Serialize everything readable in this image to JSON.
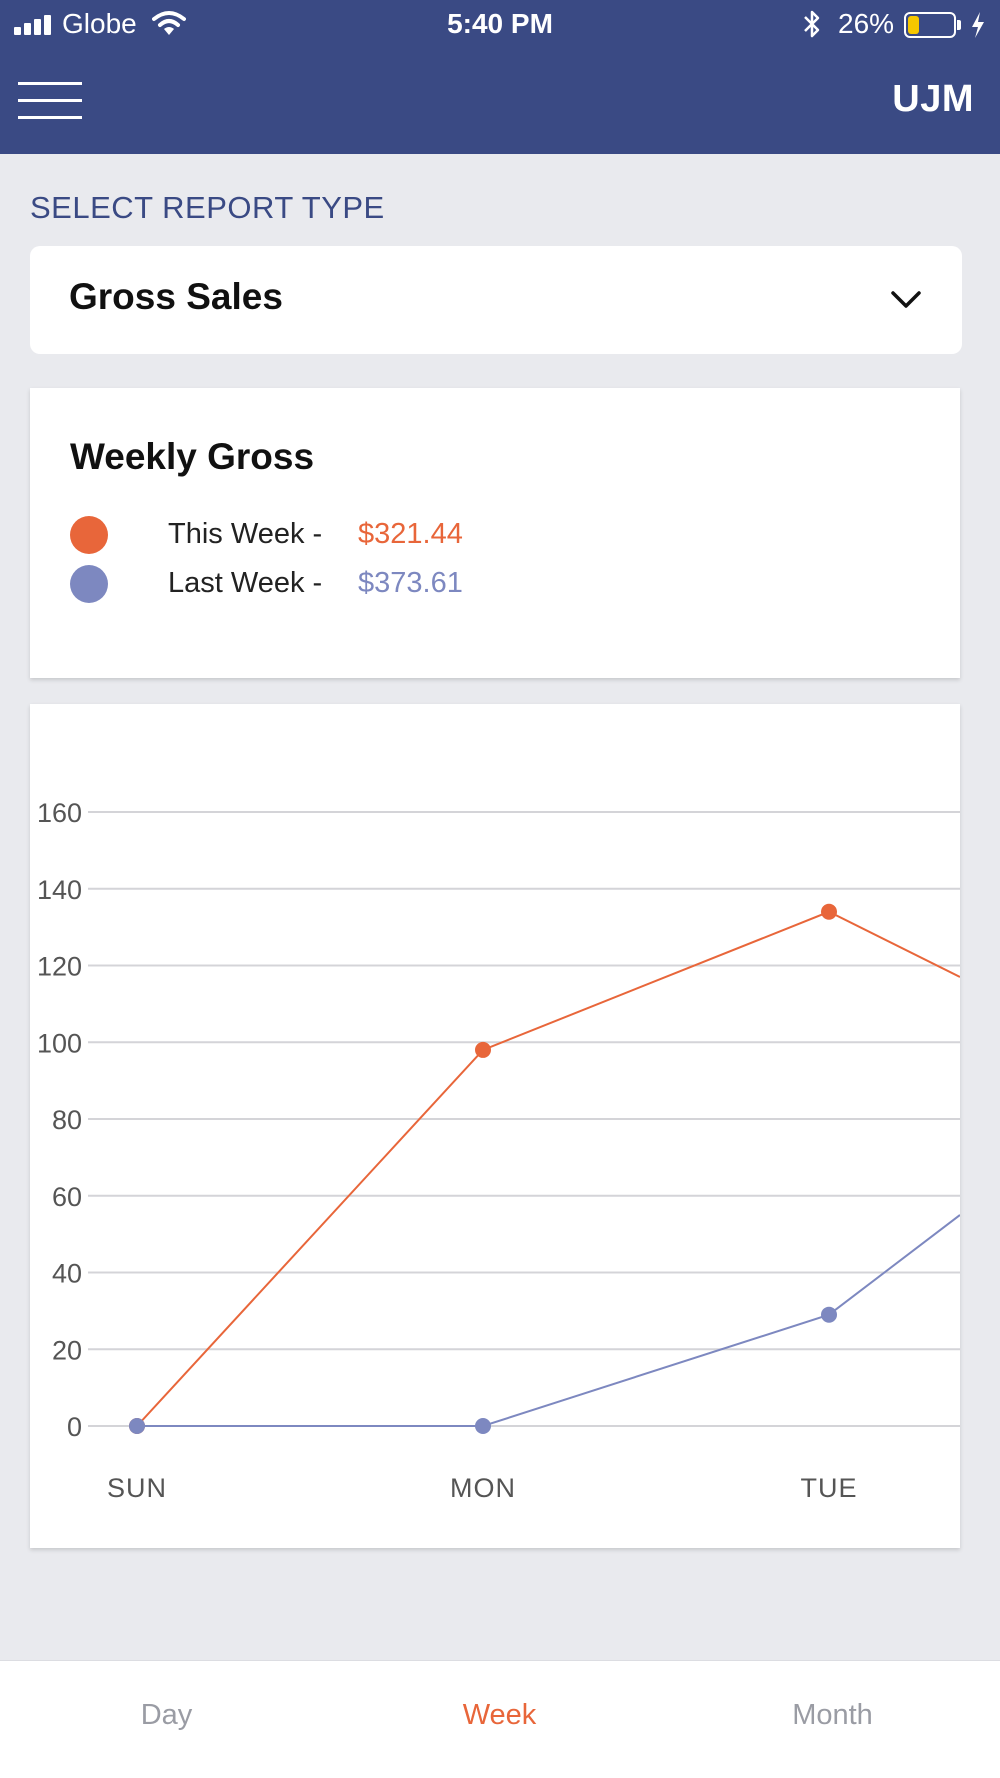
{
  "status_bar": {
    "carrier": "Globe",
    "time": "5:40 PM",
    "battery": "26%",
    "battery_level": 0.26,
    "icons": [
      "signal-icon",
      "wifi-icon",
      "bluetooth-icon",
      "battery-icon",
      "charging-icon"
    ]
  },
  "header": {
    "brand": "UJM",
    "menu_icon": "hamburger-menu-icon",
    "background_color": "#3a4a84"
  },
  "report_selector": {
    "label": "SELECT REPORT TYPE",
    "selected": "Gross Sales",
    "icon": "chevron-down-icon"
  },
  "summary": {
    "title": "Weekly Gross",
    "items": [
      {
        "label": "This Week -",
        "value": "$321.44",
        "color": "#e8663a"
      },
      {
        "label": "Last Week -",
        "value": "$373.61",
        "color": "#7d88c0"
      }
    ]
  },
  "chart_data": {
    "type": "line",
    "categories": [
      "SUN",
      "MON",
      "TUE"
    ],
    "yticks": [
      0,
      20,
      40,
      60,
      80,
      100,
      120,
      140,
      160
    ],
    "ylim": [
      0,
      160
    ],
    "grid": true,
    "series": [
      {
        "name": "This Week",
        "color": "#e8663a",
        "values": [
          0,
          98,
          134
        ],
        "trailing_value": 117
      },
      {
        "name": "Last Week",
        "color": "#7d88c0",
        "values": [
          0,
          0,
          29
        ],
        "trailing_value": 55
      }
    ]
  },
  "tabs": [
    {
      "label": "Day",
      "active": false
    },
    {
      "label": "Week",
      "active": true
    },
    {
      "label": "Month",
      "active": false
    }
  ],
  "colors": {
    "accent": "#e8663a",
    "secondary": "#7d88c0",
    "page_background": "#e9eaee"
  }
}
